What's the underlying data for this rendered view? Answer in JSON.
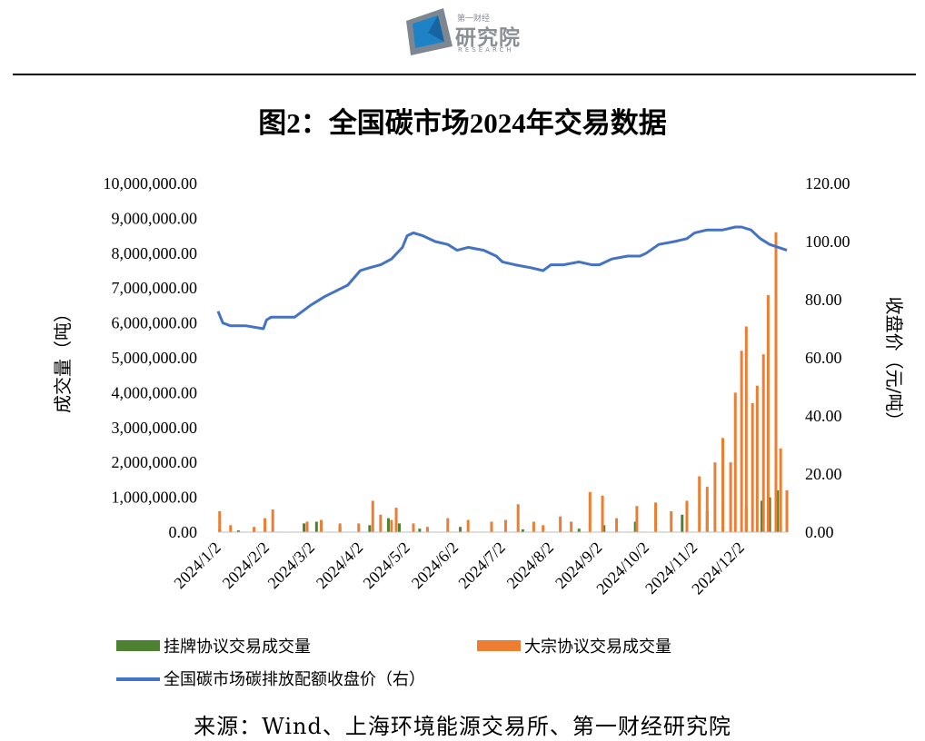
{
  "logo": {
    "small": "第一财经",
    "big": "研究院",
    "en": "RESEARCH"
  },
  "source": "来源：Wind、上海环境能源交易所、第一财经研究院",
  "colors": {
    "green": "#4f8132",
    "orange": "#ed7d31",
    "blue": "#4472c4"
  },
  "chart_data": {
    "type": "bar",
    "title": "图2：全国碳市场2024年交易数据",
    "ylabel_left": "成交量（吨）",
    "ylabel_right": "收盘价（元/吨）",
    "ylim_left": [
      0,
      10000000
    ],
    "ylim_right": [
      0,
      120
    ],
    "yticks_left": [
      "0.00",
      "1,000,000.00",
      "2,000,000.00",
      "3,000,000.00",
      "4,000,000.00",
      "5,000,000.00",
      "6,000,000.00",
      "7,000,000.00",
      "8,000,000.00",
      "9,000,000.00",
      "10,000,000.00"
    ],
    "yticks_right": [
      "0.00",
      "20.00",
      "40.00",
      "60.00",
      "80.00",
      "100.00",
      "120.00"
    ],
    "xticks": [
      "2024/1/2",
      "2024/2/2",
      "2024/3/2",
      "2024/4/2",
      "2024/5/2",
      "2024/6/2",
      "2024/7/2",
      "2024/8/2",
      "2024/9/2",
      "2024/10/2",
      "2024/11/2",
      "2024/12/2"
    ],
    "legend_position": "bottom",
    "grid": false,
    "series": [
      {
        "name": "挂牌协议交易成交量",
        "type": "bar",
        "axis": "left",
        "x": [
          "2024/1/3",
          "2024/1/15",
          "2024/2/1",
          "2024/2/26",
          "2024/3/5",
          "2024/3/20",
          "2024/4/8",
          "2024/4/20",
          "2024/4/27",
          "2024/5/10",
          "2024/6/5",
          "2024/6/25",
          "2024/7/15",
          "2024/8/20",
          "2024/9/5",
          "2024/9/25",
          "2024/10/25",
          "2024/11/10",
          "2024/11/20",
          "2024/12/5",
          "2024/12/15",
          "2024/12/20",
          "2024/12/25",
          "2024/12/31"
        ],
        "values": [
          80000,
          50000,
          60000,
          250000,
          300000,
          150000,
          200000,
          400000,
          250000,
          100000,
          150000,
          100000,
          80000,
          100000,
          200000,
          300000,
          500000,
          600000,
          800000,
          700000,
          900000,
          1000000,
          1200000,
          600000
        ]
      },
      {
        "name": "大宗协议交易成交量",
        "type": "bar",
        "axis": "left",
        "x": [
          "2024/1/3",
          "2024/1/10",
          "2024/1/25",
          "2024/2/1",
          "2024/2/6",
          "2024/2/28",
          "2024/3/8",
          "2024/3/20",
          "2024/4/1",
          "2024/4/10",
          "2024/4/15",
          "2024/4/22",
          "2024/4/25",
          "2024/5/6",
          "2024/5/15",
          "2024/5/28",
          "2024/6/10",
          "2024/6/25",
          "2024/7/4",
          "2024/7/12",
          "2024/7/22",
          "2024/7/28",
          "2024/8/8",
          "2024/8/15",
          "2024/8/27",
          "2024/9/4",
          "2024/9/13",
          "2024/9/26",
          "2024/10/8",
          "2024/10/18",
          "2024/10/28",
          "2024/11/5",
          "2024/11/10",
          "2024/11/15",
          "2024/11/20",
          "2024/11/25",
          "2024/11/28",
          "2024/12/2",
          "2024/12/5",
          "2024/12/9",
          "2024/12/12",
          "2024/12/16",
          "2024/12/19",
          "2024/12/24",
          "2024/12/27",
          "2024/12/31"
        ],
        "values": [
          600000,
          200000,
          150000,
          400000,
          650000,
          300000,
          350000,
          250000,
          250000,
          900000,
          500000,
          350000,
          700000,
          250000,
          150000,
          400000,
          350000,
          300000,
          350000,
          800000,
          300000,
          200000,
          450000,
          300000,
          1150000,
          1050000,
          400000,
          750000,
          850000,
          600000,
          900000,
          1600000,
          1300000,
          2000000,
          2700000,
          2000000,
          4000000,
          5200000,
          5900000,
          3700000,
          4200000,
          5100000,
          6800000,
          8600000,
          2400000,
          1200000
        ]
      },
      {
        "name": "全国碳市场碳排放配额收盘价（右）",
        "type": "line",
        "axis": "right",
        "x": [
          "2024/1/2",
          "2024/1/5",
          "2024/1/10",
          "2024/1/20",
          "2024/1/31",
          "2024/2/2",
          "2024/2/5",
          "2024/2/20",
          "2024/3/1",
          "2024/3/10",
          "2024/3/25",
          "2024/4/2",
          "2024/4/8",
          "2024/4/15",
          "2024/4/22",
          "2024/4/29",
          "2024/5/2",
          "2024/5/6",
          "2024/5/12",
          "2024/5/20",
          "2024/5/28",
          "2024/6/3",
          "2024/6/10",
          "2024/6/20",
          "2024/6/28",
          "2024/7/2",
          "2024/7/10",
          "2024/7/20",
          "2024/7/28",
          "2024/8/2",
          "2024/8/10",
          "2024/8/20",
          "2024/8/28",
          "2024/9/2",
          "2024/9/10",
          "2024/9/20",
          "2024/9/28",
          "2024/10/2",
          "2024/10/10",
          "2024/10/20",
          "2024/10/28",
          "2024/11/2",
          "2024/11/10",
          "2024/11/20",
          "2024/11/28",
          "2024/12/2",
          "2024/12/8",
          "2024/12/14",
          "2024/12/20",
          "2024/12/31"
        ],
        "values": [
          76,
          72,
          71,
          71,
          70,
          73,
          74,
          74,
          78,
          81,
          85,
          90,
          91,
          92,
          94,
          98,
          102,
          103,
          102,
          100,
          99,
          97,
          98,
          97,
          95,
          93,
          92,
          91,
          90,
          92,
          92,
          93,
          92,
          92,
          94,
          95,
          95,
          96,
          99,
          100,
          101,
          103,
          104,
          104,
          105,
          105,
          104,
          101,
          99,
          97
        ]
      }
    ]
  }
}
